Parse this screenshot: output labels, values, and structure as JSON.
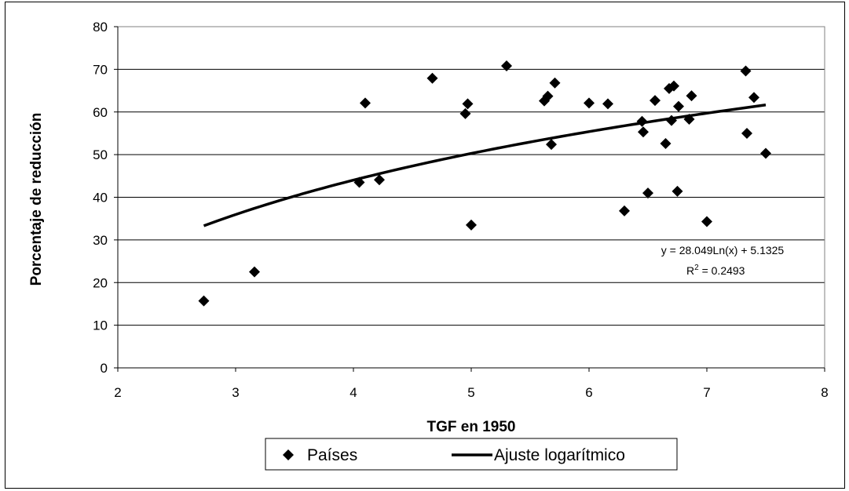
{
  "chart_data": {
    "type": "scatter",
    "xlabel": "TGF en 1950",
    "ylabel": "Porcentaje de reducción",
    "xlim": [
      2,
      8
    ],
    "ylim": [
      0,
      80
    ],
    "x_ticks": [
      "2",
      "3",
      "4",
      "5",
      "6",
      "7",
      "8"
    ],
    "y_ticks": [
      "0",
      "10",
      "20",
      "30",
      "40",
      "50",
      "60",
      "70",
      "80"
    ],
    "grid": "horizontal",
    "legend_position": "bottom",
    "series": [
      {
        "name": "Países",
        "kind": "scatter",
        "marker": "diamond",
        "color": "#000000",
        "points": [
          {
            "x": 2.73,
            "y": 15.7
          },
          {
            "x": 3.16,
            "y": 22.5
          },
          {
            "x": 4.05,
            "y": 43.5
          },
          {
            "x": 4.1,
            "y": 62.1
          },
          {
            "x": 4.22,
            "y": 44.1
          },
          {
            "x": 4.67,
            "y": 67.9
          },
          {
            "x": 4.95,
            "y": 59.6
          },
          {
            "x": 4.97,
            "y": 61.9
          },
          {
            "x": 5.0,
            "y": 33.5
          },
          {
            "x": 5.3,
            "y": 70.8
          },
          {
            "x": 5.62,
            "y": 62.6
          },
          {
            "x": 5.65,
            "y": 63.7
          },
          {
            "x": 5.68,
            "y": 52.4
          },
          {
            "x": 5.71,
            "y": 66.8
          },
          {
            "x": 6.0,
            "y": 62.1
          },
          {
            "x": 6.16,
            "y": 61.9
          },
          {
            "x": 6.3,
            "y": 36.8
          },
          {
            "x": 6.45,
            "y": 57.8
          },
          {
            "x": 6.46,
            "y": 55.3
          },
          {
            "x": 6.5,
            "y": 41.0
          },
          {
            "x": 6.56,
            "y": 62.7
          },
          {
            "x": 6.65,
            "y": 52.6
          },
          {
            "x": 6.68,
            "y": 65.5
          },
          {
            "x": 6.7,
            "y": 58.0
          },
          {
            "x": 6.72,
            "y": 66.1
          },
          {
            "x": 6.75,
            "y": 41.4
          },
          {
            "x": 6.76,
            "y": 61.3
          },
          {
            "x": 6.85,
            "y": 58.3
          },
          {
            "x": 6.87,
            "y": 63.8
          },
          {
            "x": 7.0,
            "y": 34.3
          },
          {
            "x": 7.33,
            "y": 69.6
          },
          {
            "x": 7.34,
            "y": 55.0
          },
          {
            "x": 7.4,
            "y": 63.4
          },
          {
            "x": 7.5,
            "y": 50.3
          }
        ]
      },
      {
        "name": "Ajuste logarítmico",
        "kind": "line",
        "color": "#000000",
        "equation": {
          "a": 28.049,
          "b": 5.1325
        },
        "x_range": [
          2.73,
          7.5
        ]
      }
    ],
    "annotations": [
      "y = 28.049Ln(x) + 5.1325",
      "R",
      "2",
      " = 0.2493"
    ]
  }
}
